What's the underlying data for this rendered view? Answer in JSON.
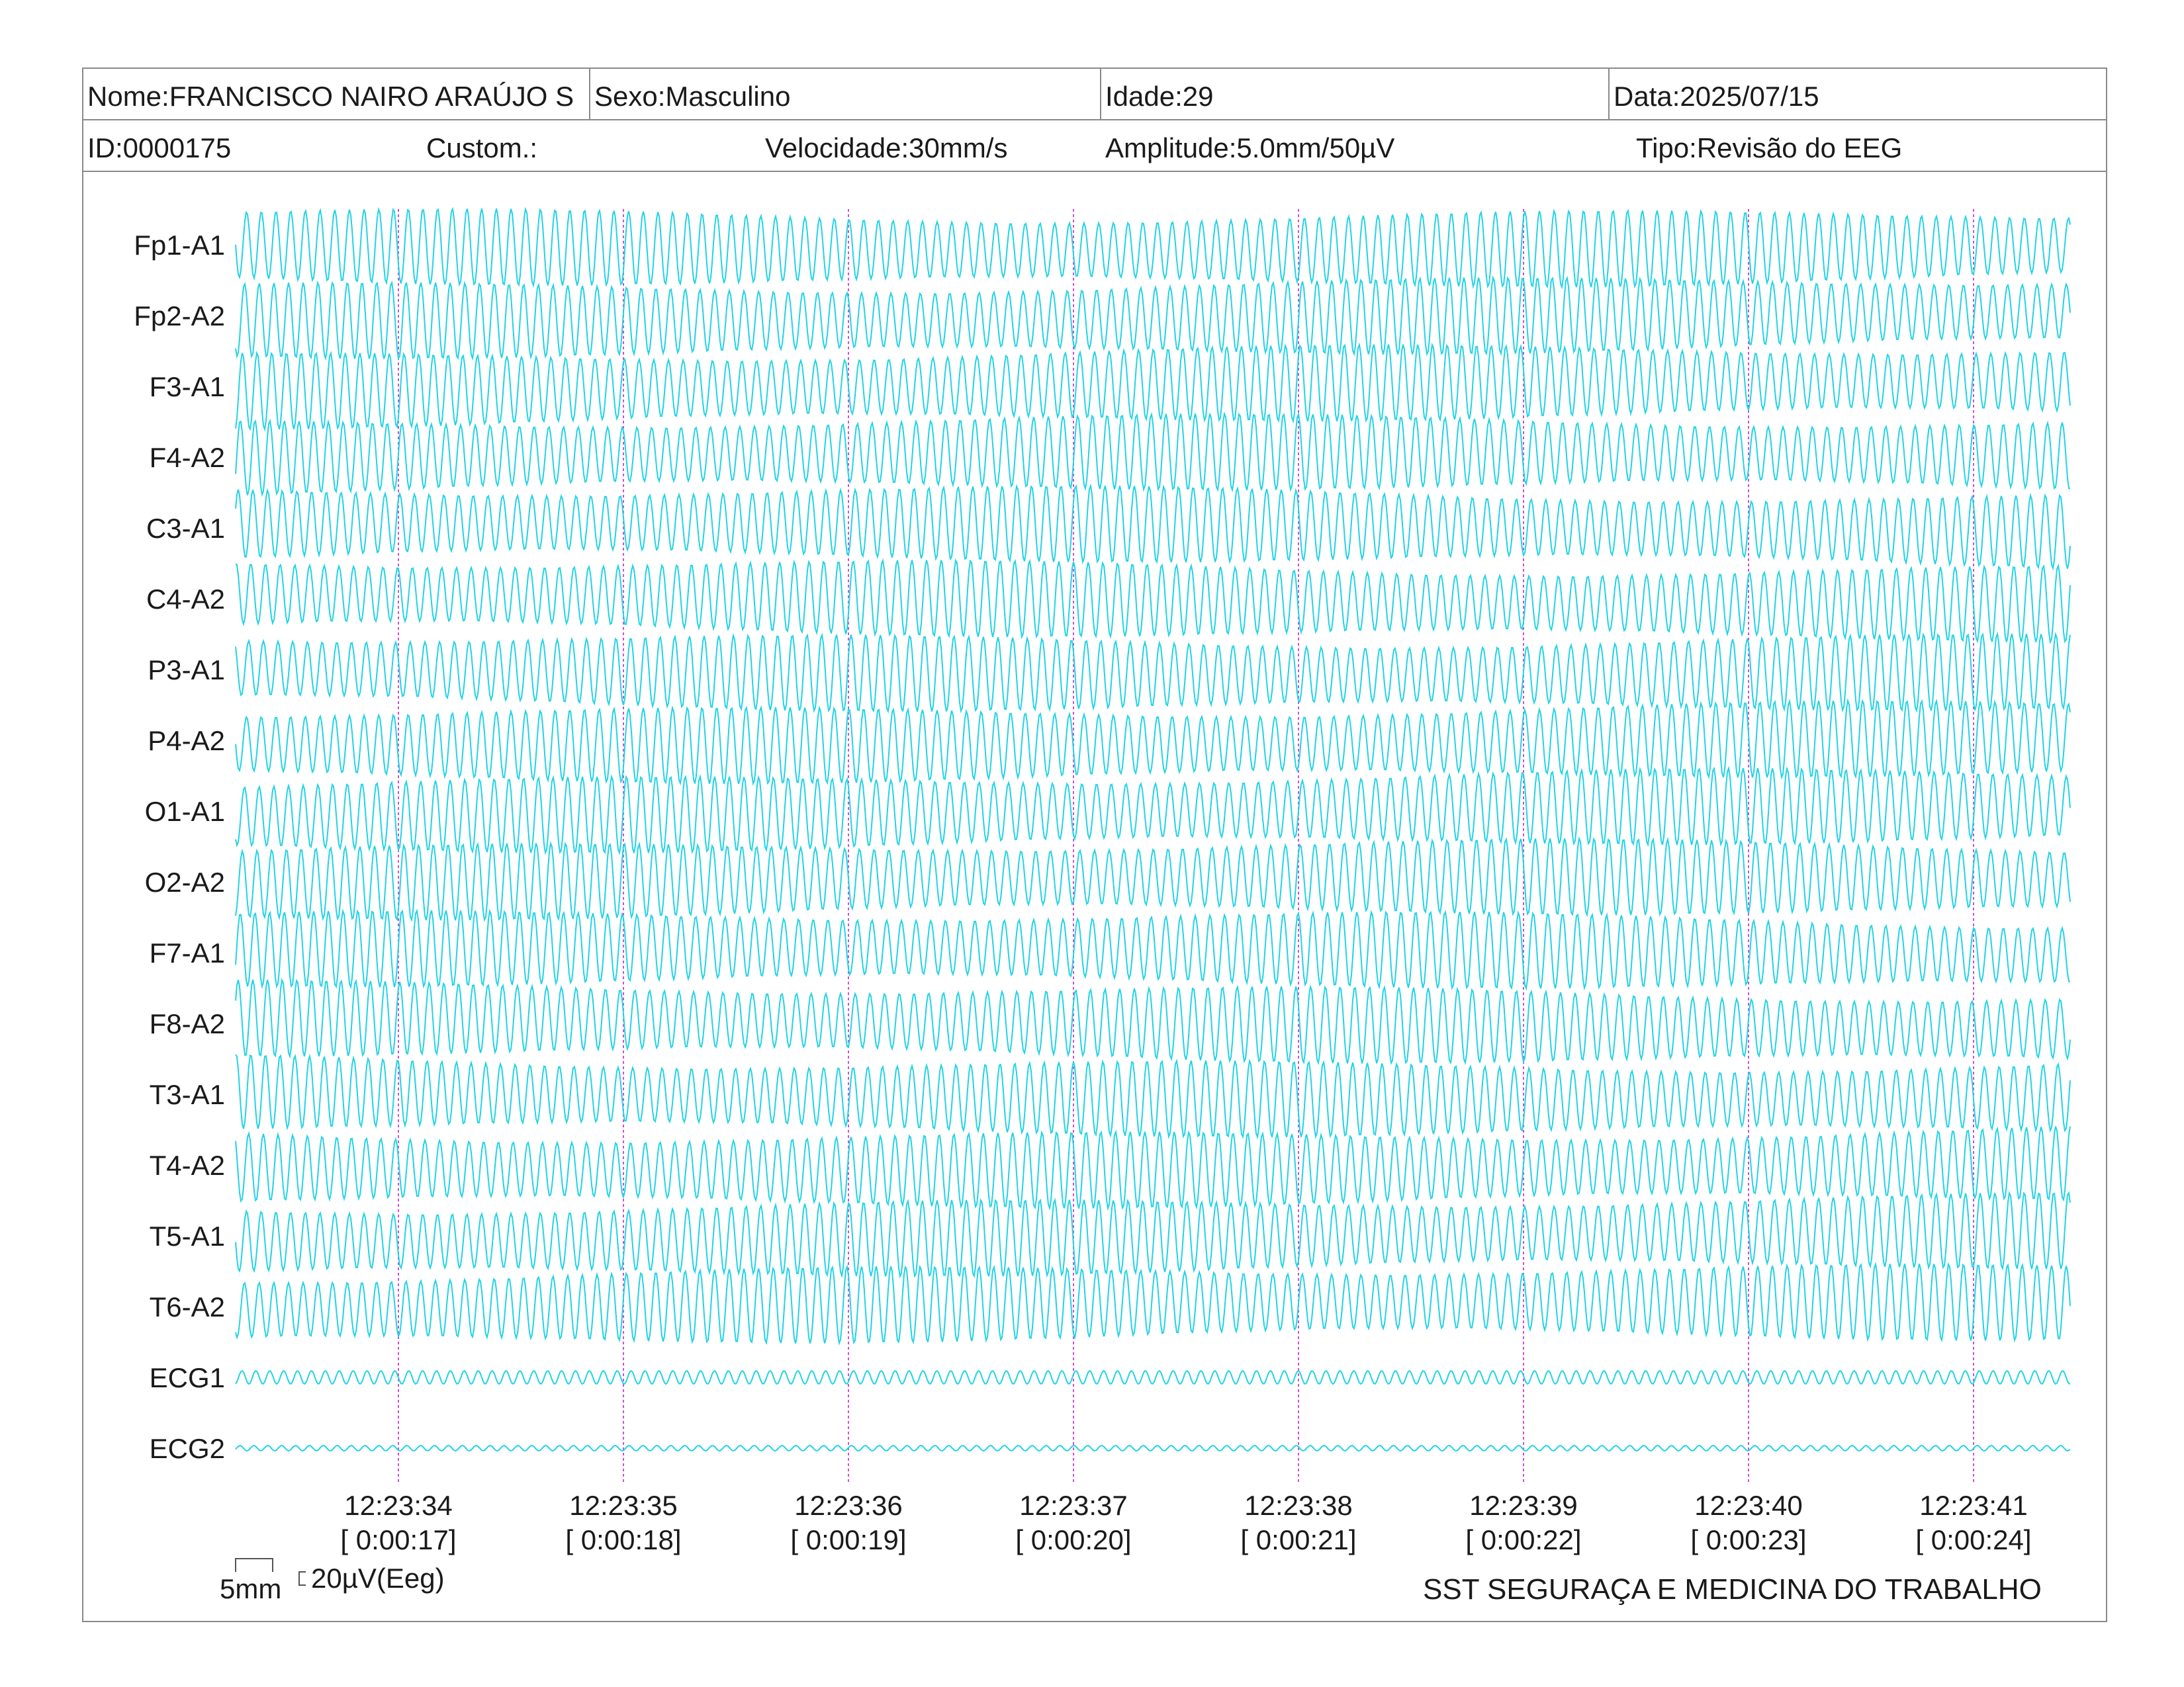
{
  "header": {
    "nome": "Nome:FRANCISCO NAIRO ARAÚJO S",
    "sexo": "Sexo:Masculino",
    "idade": "Idade:29",
    "data": "Data:2025/07/15",
    "id": "ID:0000175",
    "custom": "Custom.:",
    "velocidade": "Velocidade:30mm/s",
    "amplitude": "Amplitude:5.0mm/50µV",
    "tipo": "Tipo:Revisão do EEG"
  },
  "trace_color": "#22d3e6",
  "marker_color": "#d24bd8",
  "chart_data": {
    "type": "line",
    "channels": [
      "Fp1-A1",
      "Fp2-A2",
      "F3-A1",
      "F4-A2",
      "C3-A1",
      "C4-A2",
      "P3-A1",
      "P4-A2",
      "O1-A1",
      "O2-A2",
      "F7-A1",
      "F8-A2",
      "T3-A1",
      "T4-A2",
      "T5-A1",
      "T6-A2",
      "ECG1",
      "ECG2"
    ],
    "time_markers": [
      {
        "clock": "12:23:34",
        "elapsed": "[ 0:00:17]"
      },
      {
        "clock": "12:23:35",
        "elapsed": "[ 0:00:18]"
      },
      {
        "clock": "12:23:36",
        "elapsed": "[ 0:00:19]"
      },
      {
        "clock": "12:23:37",
        "elapsed": "[ 0:00:20]"
      },
      {
        "clock": "12:23:38",
        "elapsed": "[ 0:00:21]"
      },
      {
        "clock": "12:23:39",
        "elapsed": "[ 0:00:22]"
      },
      {
        "clock": "12:23:40",
        "elapsed": "[ 0:00:23]"
      },
      {
        "clock": "12:23:41",
        "elapsed": "[ 0:00:24]"
      }
    ]
  },
  "scale": {
    "length_label": "5mm",
    "amplitude_label": "20µV(Eeg)"
  },
  "footer": {
    "company": "SST SEGURAÇA E MEDICINA DO TRABALHO"
  }
}
